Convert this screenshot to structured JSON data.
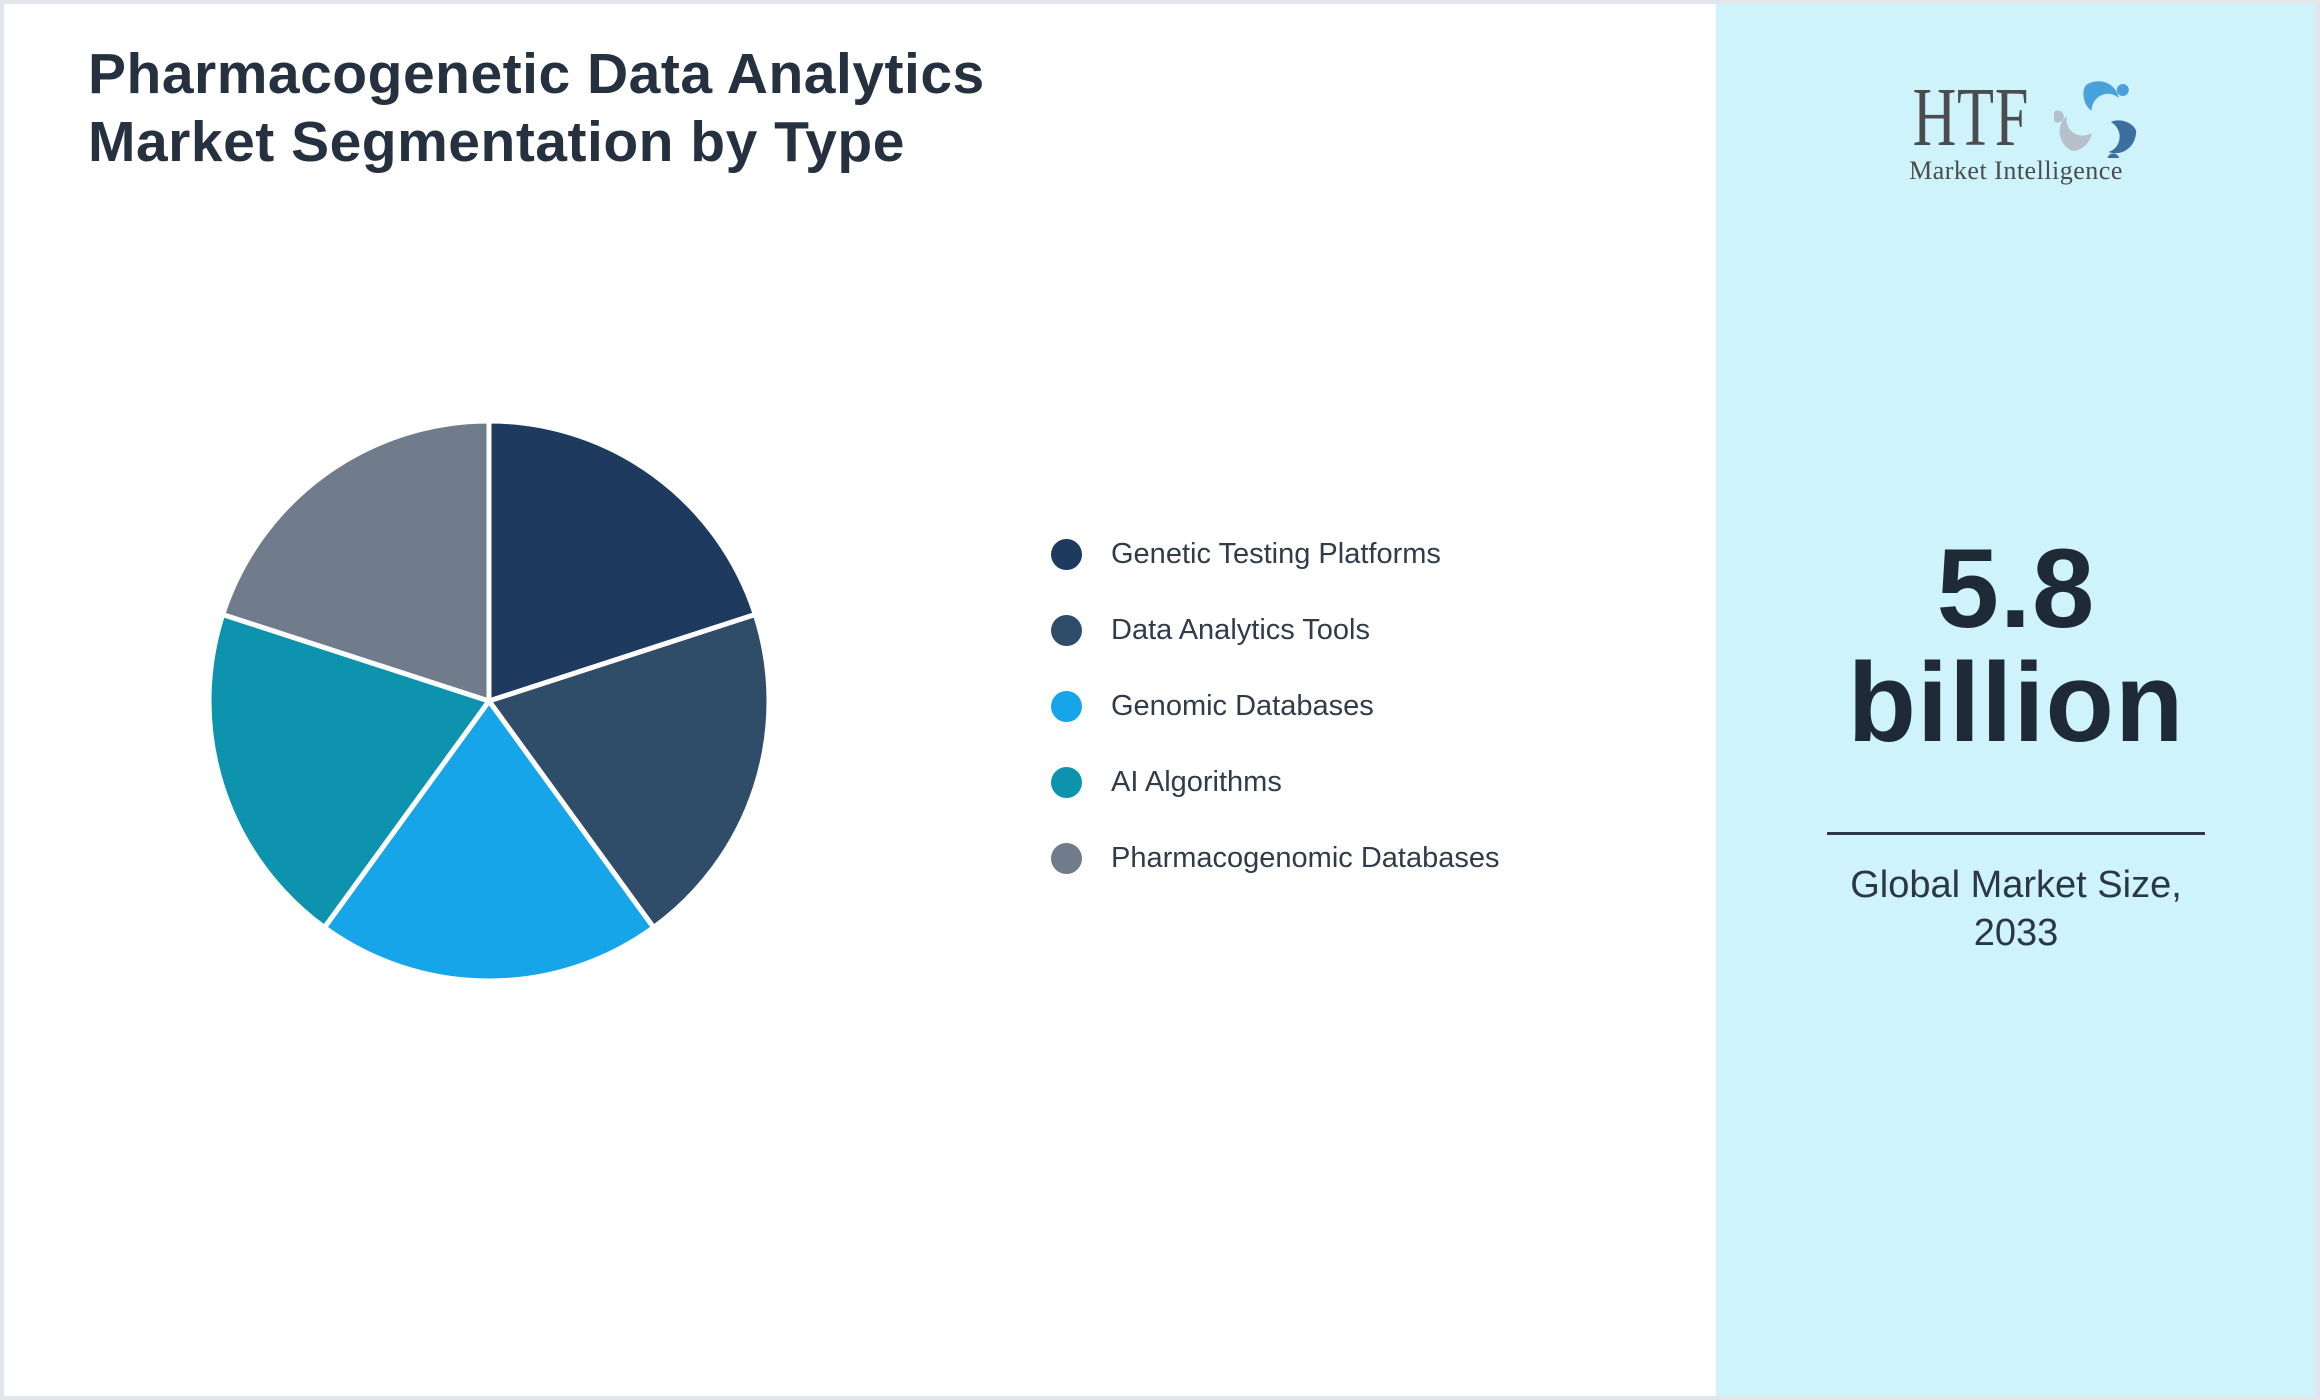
{
  "page": {
    "title_line1": "Pharmacogenetic Data Analytics",
    "title_line2": "Market Segmentation by Type"
  },
  "chart_data": {
    "type": "pie",
    "title": "Pharmacogenetic Data Analytics Market Segmentation by Type",
    "labels": [
      "Genetic Testing Platforms",
      "Data Analytics Tools",
      "Genomic Databases",
      "AI Algorithms",
      "Pharmacogenomic Databases"
    ],
    "values": [
      20,
      20,
      20,
      20,
      20
    ],
    "colors": [
      "#1e3a5e",
      "#2f4c68",
      "#17a5e9",
      "#0e93af",
      "#707b8b"
    ],
    "start_angle_deg": 0,
    "direction": "clockwise",
    "slice_gap_color": "#ffffff",
    "legend_position": "right",
    "labels_on_slices": false
  },
  "sidebar": {
    "bg_color": "#cff3fb",
    "logo": {
      "text": "HTF",
      "subtext": "Market Intelligence",
      "icon": "dolphin-swirl-icon",
      "icon_colors": [
        "#4aa0d8",
        "#3a6f9f",
        "#b5c0ca"
      ]
    },
    "stat": {
      "value": "5.8",
      "unit": "billion",
      "caption_line1": "Global Market Size,",
      "caption_line2": "2033"
    }
  }
}
